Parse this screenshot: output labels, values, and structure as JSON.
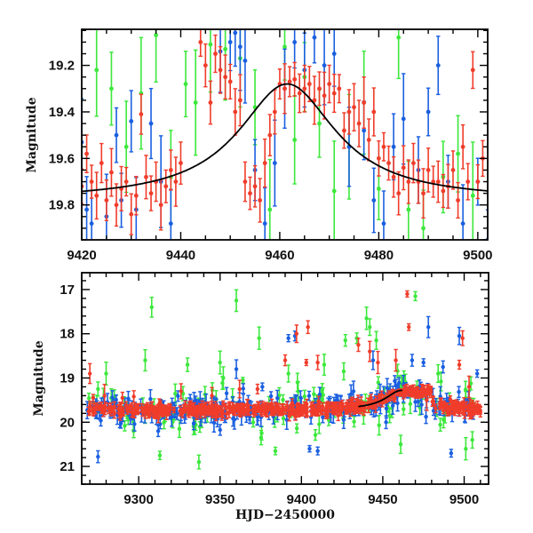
{
  "chart_data": [
    {
      "type": "scatter",
      "panel": "top",
      "title": "",
      "xlabel": "",
      "ylabel": "Magnitude",
      "xlim": [
        9420,
        9502
      ],
      "ylim": [
        19.95,
        19.045
      ],
      "y_inverted": true,
      "xticks": [
        9420,
        9440,
        9460,
        9480,
        9500
      ],
      "yticks": [
        19.2,
        19.4,
        19.6,
        19.8
      ],
      "ytick_labels": [
        "19.2",
        "19.4",
        "19.6",
        "19.8"
      ],
      "grid": false,
      "legend": "none",
      "model_curve": {
        "name": "model",
        "color": "#000000",
        "shape": "lorentzian peak",
        "peak_x": 9461.5,
        "peak_y": 19.28,
        "baseline_y": 19.78,
        "half_width": 12
      },
      "series": [
        {
          "name": "red",
          "color": "#f03c2a",
          "x": [
            9420,
            9421,
            9422,
            9423,
            9424,
            9425,
            9426,
            9427,
            9428,
            9429,
            9430,
            9431,
            9432,
            9433,
            9434,
            9435,
            9436,
            9437,
            9438,
            9439,
            9440,
            9444,
            9445,
            9446,
            9447,
            9448,
            9449,
            9450,
            9451,
            9452,
            9453,
            9454,
            9455,
            9456,
            9457,
            9458,
            9459,
            9460,
            9461,
            9462,
            9463,
            9464,
            9465,
            9466,
            9467,
            9468,
            9469,
            9470,
            9471,
            9472,
            9473,
            9474,
            9475,
            9476,
            9477,
            9478,
            9479,
            9480,
            9481,
            9482,
            9483,
            9484,
            9485,
            9486,
            9487,
            9488,
            9489,
            9490,
            9491,
            9492,
            9493,
            9494,
            9495,
            9496,
            9497,
            9498,
            9499,
            9500,
            9501
          ],
          "y": [
            19.72,
            19.58,
            19.7,
            19.76,
            19.62,
            19.78,
            19.66,
            19.8,
            19.73,
            19.7,
            19.84,
            19.76,
            19.41,
            19.68,
            19.75,
            19.7,
            19.8,
            19.72,
            19.65,
            19.7,
            19.62,
            19.1,
            19.2,
            19.36,
            19.15,
            19.22,
            19.25,
            19.27,
            19.4,
            19.35,
            19.7,
            19.75,
            19.72,
            19.78,
            19.62,
            19.5,
            19.4,
            19.28,
            19.3,
            19.27,
            19.26,
            19.32,
            19.3,
            19.28,
            19.35,
            19.3,
            19.33,
            19.28,
            19.32,
            19.3,
            19.48,
            19.4,
            19.38,
            19.45,
            19.36,
            19.52,
            19.4,
            19.6,
            19.55,
            19.62,
            19.68,
            19.75,
            19.64,
            19.7,
            19.62,
            19.7,
            19.75,
            19.65,
            19.7,
            19.7,
            19.74,
            19.72,
            19.65,
            19.78,
            19.55,
            19.7,
            19.22,
            19.7,
            19.6
          ]
        },
        {
          "name": "blue",
          "color": "#1a5fe0",
          "x": [
            9420,
            9421,
            9422,
            9425,
            9427,
            9428,
            9430,
            9431,
            9434,
            9436,
            9438,
            9448,
            9450,
            9451,
            9452,
            9453,
            9455,
            9457,
            9459,
            9461,
            9463,
            9465,
            9467,
            9469,
            9471,
            9474,
            9477,
            9479,
            9481,
            9483,
            9485,
            9488,
            9490,
            9492,
            9494,
            9497,
            9500,
            9502
          ],
          "y": [
            19.53,
            19.82,
            19.88,
            19.85,
            19.5,
            19.78,
            19.44,
            19.82,
            19.45,
            19.7,
            19.88,
            19.14,
            19.1,
            19.06,
            19.12,
            19.18,
            19.65,
            19.88,
            19.62,
            19.3,
            19.1,
            19.22,
            19.08,
            19.2,
            19.15,
            19.55,
            19.48,
            19.78,
            19.88,
            19.55,
            19.43,
            19.65,
            19.4,
            19.2,
            19.7,
            19.88,
            19.7,
            19.95
          ]
        },
        {
          "name": "green",
          "color": "#3ce83c",
          "x": [
            9423,
            9426,
            9429,
            9432,
            9435,
            9438,
            9441,
            9443,
            9446,
            9449,
            9452,
            9455,
            9458,
            9461,
            9463,
            9465,
            9468,
            9471,
            9474,
            9477,
            9480,
            9484,
            9486,
            9489,
            9493,
            9496,
            9499
          ],
          "y": [
            19.22,
            19.3,
            19.55,
            19.32,
            19.07,
            19.68,
            19.28,
            19.36,
            19.11,
            19.13,
            19.17,
            19.38,
            19.82,
            19.12,
            19.52,
            19.25,
            19.45,
            19.74,
            19.55,
            19.36,
            19.73,
            19.08,
            19.82,
            19.9,
            19.68,
            19.58,
            19.76
          ]
        }
      ]
    },
    {
      "type": "scatter",
      "panel": "bottom",
      "title": "",
      "xlabel": "HJD−2450000",
      "ylabel": "Magnitude",
      "xlim": [
        9265,
        9515
      ],
      "ylim": [
        21.4,
        16.62
      ],
      "y_inverted": true,
      "xticks": [
        9300,
        9350,
        9400,
        9450,
        9500
      ],
      "yticks": [
        17,
        18,
        19,
        20,
        21
      ],
      "ytick_labels": [
        "17",
        "18",
        "19",
        "20",
        "21"
      ],
      "grid": false,
      "legend": "none",
      "model_curve": {
        "name": "model",
        "color": "#000000",
        "shape": "lorentzian peak",
        "peak_x": 9461.5,
        "peak_y": 19.28,
        "baseline_y": 19.72,
        "half_width": 12
      },
      "baseline_mag": 19.72,
      "series": [
        {
          "name": "red",
          "color": "#f03c2a",
          "outliers_x": [
            9270,
            9272,
            9279,
            9290,
            9297,
            9326,
            9345,
            9362,
            9373,
            9390,
            9397,
            9403,
            9404,
            9410,
            9435,
            9442,
            9447,
            9458,
            9465,
            9466,
            9477,
            9497,
            9499,
            9503
          ],
          "outliers_y": [
            18.9,
            19.45,
            19.4,
            19.45,
            19.42,
            19.3,
            19.4,
            19.25,
            19.25,
            18.6,
            18.0,
            18.65,
            17.85,
            18.65,
            18.25,
            18.4,
            18.65,
            18.6,
            17.1,
            17.85,
            19.5,
            18.7,
            18.1,
            19.2
          ]
        },
        {
          "name": "blue",
          "color": "#1a5fe0",
          "outliers_x": [
            9275,
            9312,
            9360,
            9376,
            9392,
            9396,
            9405,
            9410,
            9432,
            9444,
            9452,
            9468,
            9475,
            9478,
            9487,
            9492,
            9497,
            9508
          ],
          "outliers_y": [
            20.78,
            20.2,
            18.8,
            19.2,
            18.1,
            18.05,
            20.6,
            20.65,
            19.3,
            18.6,
            20.0,
            18.6,
            18.65,
            17.85,
            18.75,
            20.7,
            18.05,
            18.9
          ]
        },
        {
          "name": "green",
          "color": "#3ce83c",
          "outliers_x": [
            9275,
            9280,
            9304,
            9308,
            9313,
            9325,
            9330,
            9337,
            9350,
            9352,
            9360,
            9364,
            9374,
            9384,
            9392,
            9398,
            9414,
            9426,
            9427,
            9434,
            9440,
            9442,
            9446,
            9461,
            9470,
            9471,
            9484,
            9501,
            9505
          ],
          "outliers_y": [
            19.25,
            18.9,
            18.6,
            17.4,
            20.75,
            20.15,
            18.7,
            20.9,
            18.65,
            19.0,
            17.25,
            19.05,
            18.1,
            20.65,
            18.9,
            19.3,
            18.7,
            18.85,
            18.15,
            18.1,
            17.65,
            17.85,
            18.15,
            20.5,
            17.15,
            19.2,
            18.9,
            20.6,
            20.4
          ]
        }
      ]
    }
  ]
}
